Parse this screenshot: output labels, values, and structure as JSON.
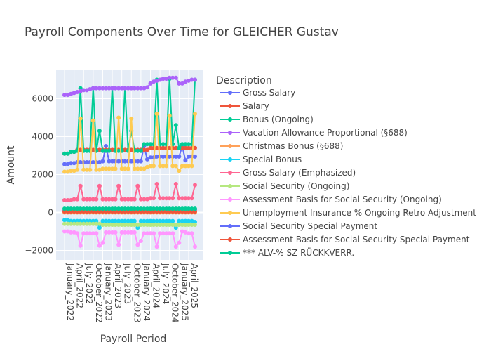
{
  "chart_data": {
    "type": "line",
    "title": "Payroll Components Over Time for GLEICHER Gustav",
    "xlabel": "Payroll Period",
    "ylabel": "Amount",
    "ylim": [
      -2500,
      7500
    ],
    "y_ticks": [
      -2000,
      0,
      2000,
      4000,
      6000
    ],
    "y_tick_labels": [
      "−2000",
      "0",
      "2000",
      "4000",
      "6000"
    ],
    "x_tick_labels": [
      "January_2022",
      "April_2022",
      "July_2022",
      "October_2022",
      "January_2023",
      "April_2023",
      "July_2023",
      "October_2023",
      "January_2024",
      "April_2024",
      "July_2024",
      "October_2024",
      "January_2025",
      "April_2025"
    ],
    "x": [
      "2022-01",
      "2022-02",
      "2022-03",
      "2022-04",
      "2022-05",
      "2022-06",
      "2022-07",
      "2022-08",
      "2022-09",
      "2022-10",
      "2022-11",
      "2022-12",
      "2023-01",
      "2023-02",
      "2023-03",
      "2023-04",
      "2023-05",
      "2023-06",
      "2023-07",
      "2023-08",
      "2023-09",
      "2023-10",
      "2023-11",
      "2023-12",
      "2024-01",
      "2024-02",
      "2024-03",
      "2024-04",
      "2024-05",
      "2024-06",
      "2024-07",
      "2024-08",
      "2024-09",
      "2024-10",
      "2024-11",
      "2024-12",
      "2025-01",
      "2025-02",
      "2025-03",
      "2025-04",
      "2025-05",
      "2025-06"
    ],
    "grid": true,
    "legend_title": "Description",
    "legend_position": "right",
    "series": [
      {
        "name": "Gross Salary",
        "color": "#636efa",
        "values": [
          2550,
          2550,
          2600,
          2600,
          2650,
          2650,
          2650,
          2650,
          2650,
          2650,
          2650,
          2650,
          2700,
          3500,
          2700,
          2700,
          2700,
          2700,
          2700,
          2700,
          2700,
          2700,
          2700,
          2700,
          2700,
          3500,
          2800,
          2900,
          2900,
          2950,
          2950,
          2950,
          2950,
          2950,
          2950,
          2950,
          2950,
          3500,
          2750,
          2950,
          2950,
          2950
        ]
      },
      {
        "name": "Salary",
        "color": "#ef553b",
        "values": [
          3100,
          3100,
          3200,
          3200,
          3300,
          3300,
          3300,
          3300,
          3300,
          3300,
          3300,
          3300,
          3300,
          3300,
          3300,
          3300,
          3300,
          3300,
          3300,
          3300,
          3300,
          3300,
          3300,
          3300,
          3300,
          3300,
          3300,
          3400,
          3400,
          3400,
          3400,
          3400,
          3400,
          3400,
          3400,
          3400,
          3400,
          3400,
          3400,
          3400,
          3400,
          3400
        ]
      },
      {
        "name": "Bonus (Ongoing)",
        "color": "#00cc96",
        "values": [
          3100,
          3100,
          3200,
          3200,
          3250,
          6550,
          3250,
          3250,
          3250,
          6550,
          3250,
          4300,
          3250,
          3250,
          3250,
          6550,
          3250,
          3250,
          3250,
          6550,
          3250,
          4300,
          3250,
          3250,
          3250,
          3600,
          3600,
          3600,
          3600,
          7000,
          3600,
          3600,
          3600,
          7050,
          3600,
          4600,
          3400,
          3600,
          3600,
          3600,
          3600,
          7000
        ]
      },
      {
        "name": "Vacation Allowance Proportional (§688)",
        "color": "#ab63fa",
        "values": [
          6200,
          6200,
          6250,
          6300,
          6350,
          6400,
          6450,
          6450,
          6500,
          6550,
          6550,
          6550,
          6550,
          6550,
          6550,
          6550,
          6550,
          6550,
          6550,
          6550,
          6550,
          6550,
          6550,
          6550,
          6550,
          6550,
          6600,
          6800,
          6900,
          6950,
          7000,
          7050,
          7050,
          7100,
          7100,
          7100,
          6800,
          6800,
          6900,
          6950,
          7000,
          7000
        ]
      },
      {
        "name": "Christmas Bonus (§688)",
        "color": "#ffa15a",
        "values": [
          0,
          0,
          0,
          0,
          0,
          0,
          0,
          0,
          0,
          0,
          0,
          0,
          0,
          0,
          0,
          0,
          0,
          0,
          0,
          0,
          0,
          0,
          0,
          0,
          0,
          0,
          0,
          0,
          0,
          0,
          0,
          0,
          0,
          0,
          0,
          0,
          0,
          0,
          0,
          0,
          0,
          0
        ]
      },
      {
        "name": "Special Bonus",
        "color": "#19d3f3",
        "values": [
          -400,
          -400,
          -450,
          -450,
          -450,
          -450,
          -450,
          -450,
          -450,
          -450,
          -450,
          -800,
          -450,
          -450,
          -450,
          -450,
          -450,
          -450,
          -450,
          -450,
          -450,
          -450,
          -450,
          -800,
          -450,
          -450,
          -450,
          -450,
          -450,
          -450,
          -450,
          -450,
          -450,
          -450,
          -450,
          -800,
          -450,
          -450,
          -450,
          -450,
          -450,
          -500
        ]
      },
      {
        "name": "Gross Salary (Emphasized)",
        "color": "#ff6692",
        "values": [
          650,
          650,
          650,
          700,
          700,
          1400,
          700,
          700,
          700,
          700,
          700,
          1400,
          700,
          700,
          700,
          700,
          700,
          1400,
          700,
          700,
          700,
          700,
          700,
          1400,
          700,
          700,
          700,
          750,
          750,
          1500,
          750,
          750,
          750,
          750,
          750,
          1500,
          750,
          750,
          750,
          750,
          750,
          1450
        ]
      },
      {
        "name": "Social Security (Ongoing)",
        "color": "#b6e880",
        "values": [
          -600,
          -600,
          -600,
          -600,
          -600,
          -600,
          -600,
          -600,
          -600,
          -600,
          -600,
          -600,
          -650,
          -650,
          -650,
          -650,
          -650,
          -650,
          -650,
          -650,
          -650,
          -650,
          -650,
          -650,
          -650,
          -650,
          -650,
          -650,
          -650,
          -650,
          -650,
          -650,
          -650,
          -650,
          -650,
          -650,
          -650,
          -650,
          -650,
          -650,
          -650,
          -650
        ]
      },
      {
        "name": "Assessment Basis for Social Security (Ongoing)",
        "color": "#ff97ff",
        "values": [
          -1000,
          -1000,
          -1050,
          -1050,
          -1100,
          -1750,
          -1100,
          -1100,
          -1100,
          -1100,
          -1100,
          -1750,
          -1600,
          -1050,
          -1050,
          -1050,
          -1050,
          -1700,
          -1050,
          -1050,
          -1050,
          -1050,
          -1050,
          -1700,
          -1500,
          -1100,
          -1100,
          -1100,
          -1100,
          -1800,
          -1100,
          -1100,
          -1100,
          -1100,
          -1100,
          -1800,
          -1600,
          -1000,
          -1050,
          -1100,
          -1100,
          -1800
        ]
      },
      {
        "name": "Unemployment Insurance % Ongoing Retro Adjustment",
        "color": "#fecb52",
        "values": [
          2150,
          2150,
          2200,
          2200,
          2250,
          4950,
          2250,
          2250,
          2250,
          4850,
          2250,
          2250,
          2300,
          2300,
          2300,
          2300,
          2300,
          5000,
          2300,
          2300,
          2300,
          4950,
          2300,
          2300,
          2300,
          2300,
          2400,
          2450,
          2450,
          5200,
          2450,
          2450,
          2450,
          5100,
          2450,
          2450,
          2200,
          2450,
          2450,
          2450,
          2450,
          5200
        ]
      },
      {
        "name": "Social Security Special Payment",
        "color": "#636efa",
        "values": [
          100,
          100,
          100,
          100,
          100,
          100,
          100,
          100,
          100,
          100,
          100,
          100,
          150,
          150,
          150,
          150,
          150,
          150,
          150,
          150,
          150,
          150,
          150,
          150,
          150,
          150,
          150,
          150,
          150,
          150,
          150,
          150,
          150,
          150,
          150,
          150,
          150,
          150,
          150,
          150,
          150,
          150
        ]
      },
      {
        "name": "Assessment Basis for Social Security Special Payment",
        "color": "#ef553b",
        "values": [
          50,
          50,
          50,
          50,
          50,
          50,
          50,
          50,
          50,
          50,
          50,
          50,
          50,
          50,
          50,
          50,
          50,
          50,
          50,
          50,
          50,
          50,
          50,
          50,
          50,
          50,
          50,
          50,
          50,
          50,
          50,
          50,
          50,
          50,
          50,
          50,
          50,
          50,
          50,
          50,
          50,
          50
        ]
      },
      {
        "name": "*** ALV-% SZ RÜCKKVERR.",
        "color": "#00cc96",
        "values": [
          200,
          200,
          200,
          200,
          200,
          200,
          200,
          200,
          200,
          200,
          200,
          200,
          200,
          200,
          200,
          200,
          200,
          200,
          200,
          200,
          200,
          200,
          200,
          200,
          200,
          200,
          200,
          200,
          200,
          200,
          200,
          200,
          200,
          200,
          200,
          200,
          200,
          200,
          200,
          200,
          200,
          200
        ]
      }
    ]
  }
}
